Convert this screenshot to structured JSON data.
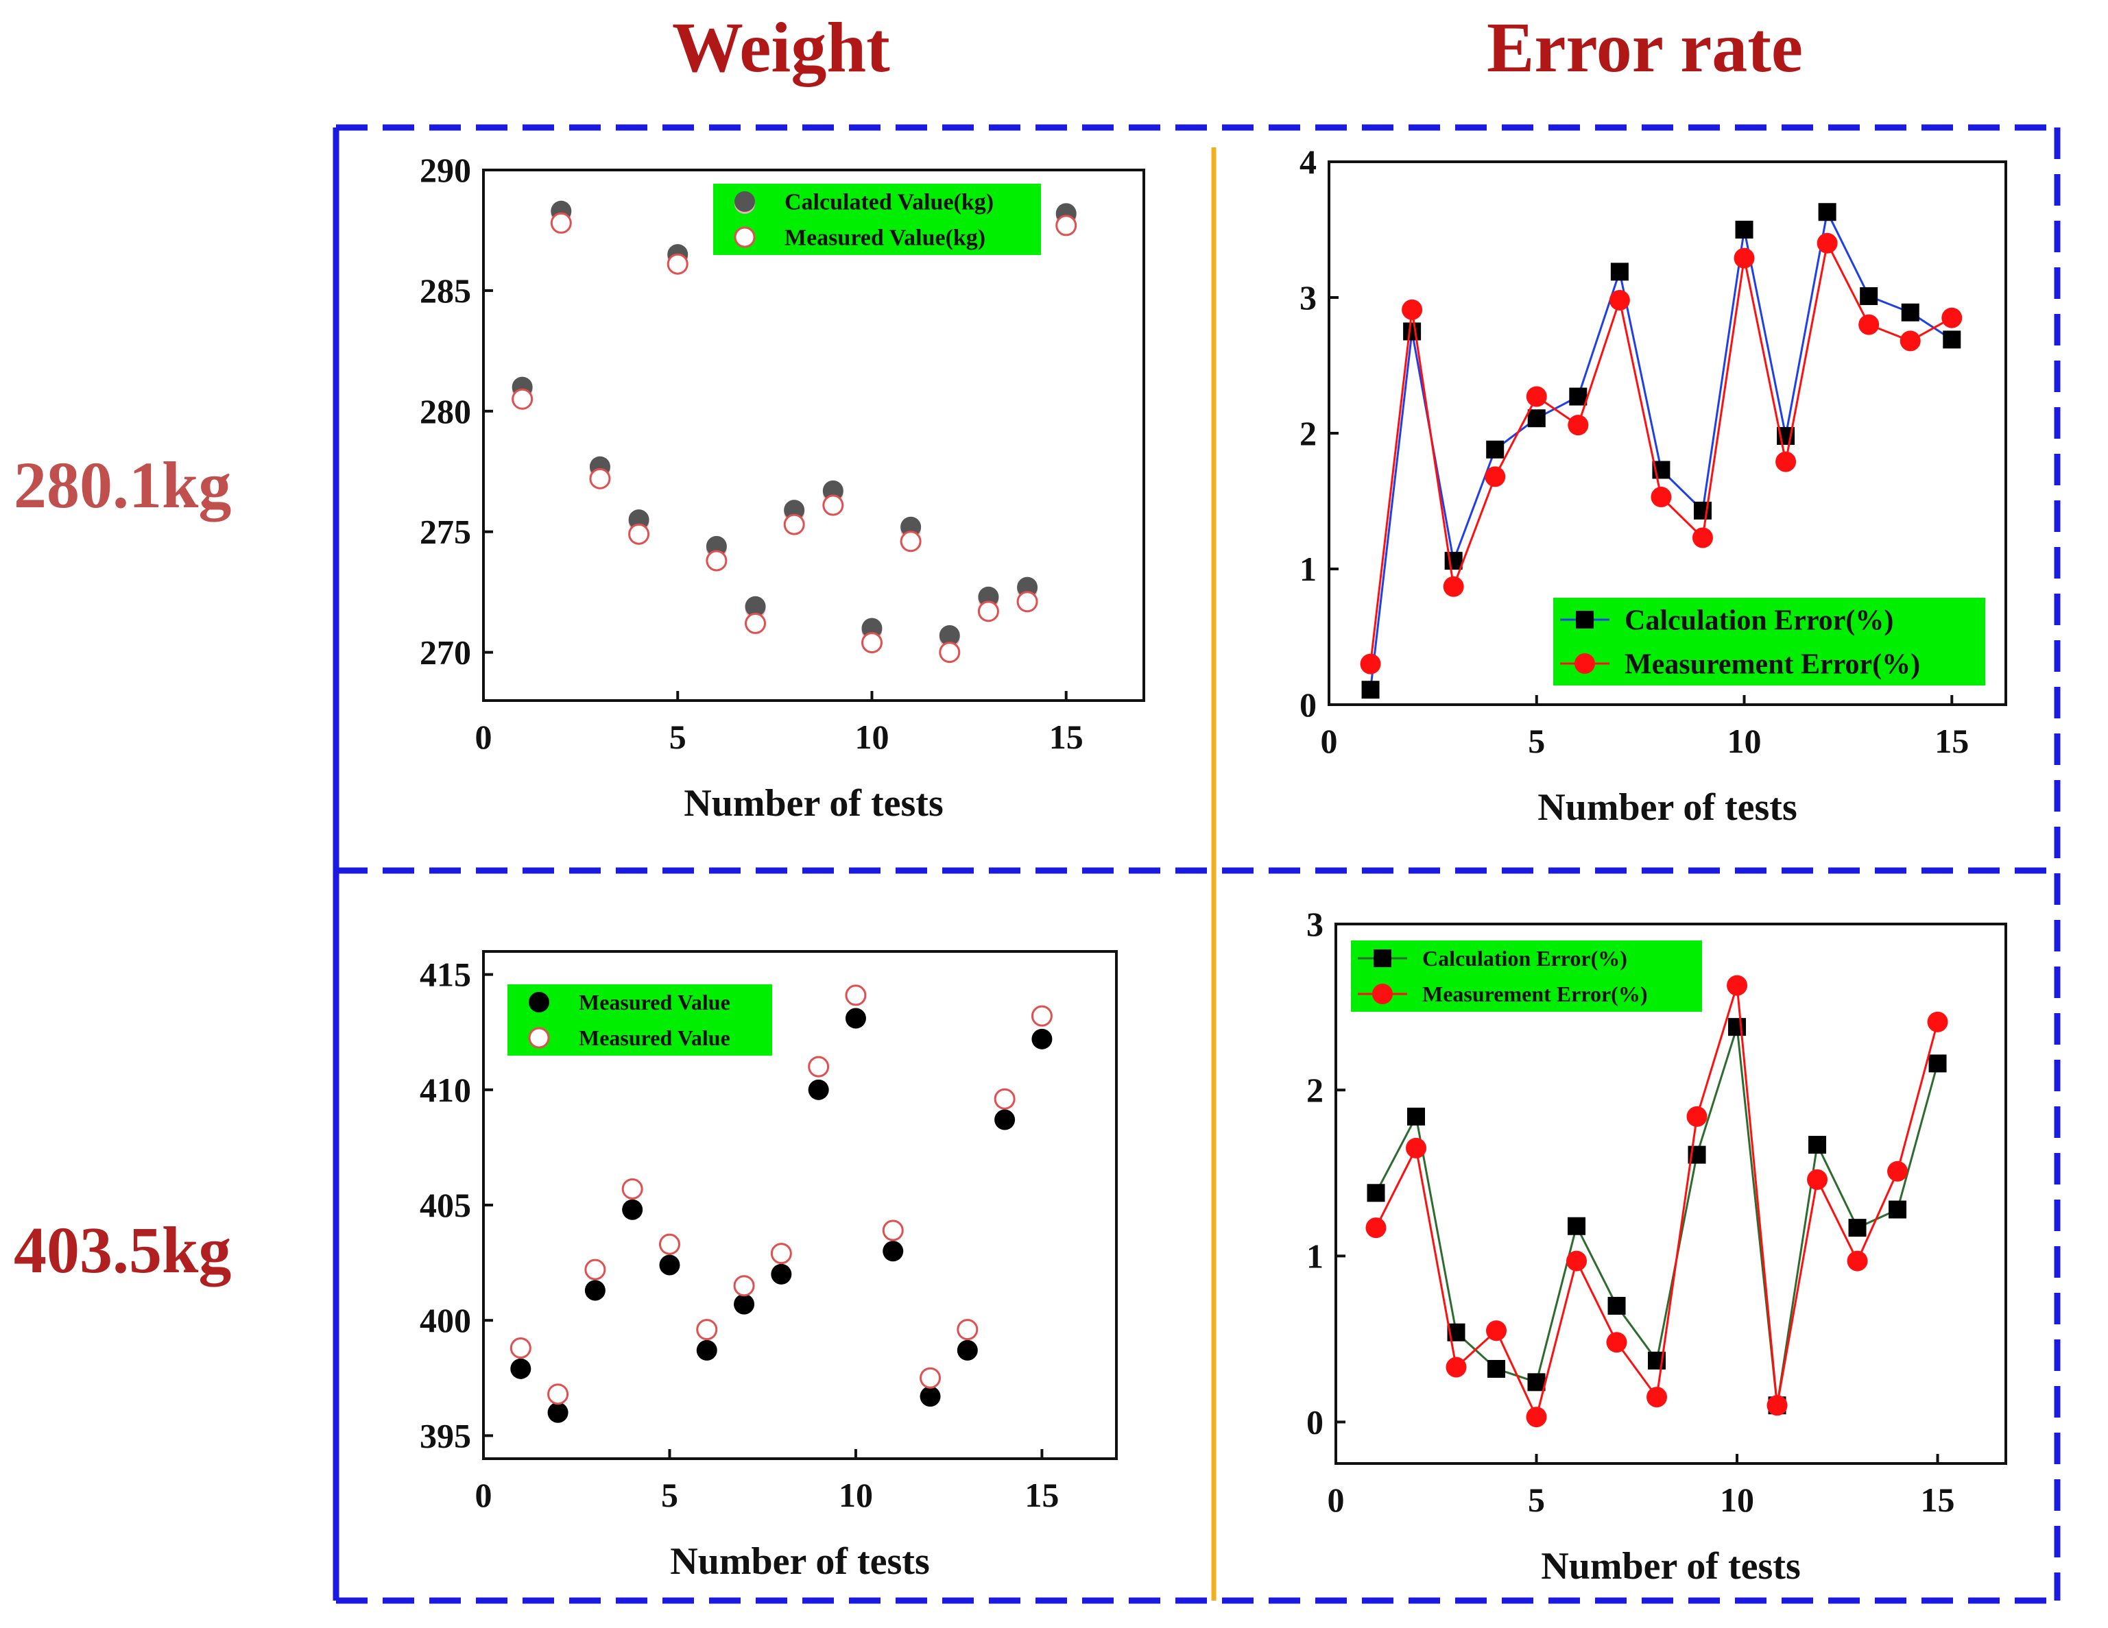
{
  "headings": {
    "columns": [
      "Weight",
      "Error rate"
    ],
    "rows": [
      "280.1kg",
      "403.5kg"
    ]
  },
  "colors": {
    "heading": "#b01818",
    "row_heading_top": "#c0504d",
    "frame": "#1a1ae0",
    "divider": "#f0b020",
    "legend_bg": "#00ee00",
    "calc_line_top": "#1f3fe8",
    "calc_line_bottom": "#2e6b2e",
    "measure": "#ff1010",
    "gray_point": "#555555",
    "black_point": "#000000"
  },
  "chart_data": [
    {
      "id": "weight-280",
      "type": "scatter",
      "title": "",
      "xlabel": "Number of tests",
      "ylabel": "",
      "xlim": [
        0,
        17
      ],
      "ylim": [
        268,
        290
      ],
      "xticks": [
        0,
        5,
        10,
        15
      ],
      "yticks": [
        270,
        275,
        280,
        285,
        290
      ],
      "legend": "top-right",
      "series": [
        {
          "name": "Calculated Value(kg)",
          "marker": "filled-gray",
          "x": [
            1,
            2,
            3,
            4,
            5,
            6,
            7,
            8,
            9,
            10,
            11,
            12,
            13,
            14,
            15
          ],
          "y": [
            281.0,
            288.3,
            277.7,
            275.5,
            286.5,
            274.4,
            271.9,
            275.9,
            276.7,
            271.0,
            275.2,
            270.7,
            272.3,
            272.7,
            288.2
          ]
        },
        {
          "name": "Measured Value(kg)",
          "marker": "open-red",
          "x": [
            1,
            2,
            3,
            4,
            5,
            6,
            7,
            8,
            9,
            10,
            11,
            12,
            13,
            14,
            15
          ],
          "y": [
            280.5,
            287.8,
            277.2,
            274.9,
            286.1,
            273.8,
            271.2,
            275.3,
            276.1,
            270.4,
            274.6,
            270.0,
            271.7,
            272.1,
            287.7
          ]
        }
      ]
    },
    {
      "id": "error-280",
      "type": "line",
      "title": "",
      "xlabel": "Number of tests",
      "ylabel": "",
      "xlim": [
        0,
        16.3
      ],
      "ylim": [
        0,
        4
      ],
      "xticks": [
        0,
        5,
        10,
        15
      ],
      "yticks": [
        0,
        1,
        2,
        3,
        4
      ],
      "legend": "bottom-right",
      "series": [
        {
          "name": "Calculation Error(%)",
          "marker": "square",
          "x": [
            1,
            2,
            3,
            4,
            5,
            6,
            7,
            8,
            9,
            10,
            11,
            12,
            13,
            14,
            15
          ],
          "y": [
            0.11,
            2.75,
            1.06,
            1.88,
            2.11,
            2.27,
            3.19,
            1.73,
            1.43,
            3.5,
            1.98,
            3.63,
            3.01,
            2.89,
            2.69
          ]
        },
        {
          "name": "Measurement Error(%)",
          "marker": "circle",
          "x": [
            1,
            2,
            3,
            4,
            5,
            6,
            7,
            8,
            9,
            10,
            11,
            12,
            13,
            14,
            15
          ],
          "y": [
            0.3,
            2.91,
            0.87,
            1.68,
            2.27,
            2.06,
            2.98,
            1.53,
            1.23,
            3.29,
            1.79,
            3.4,
            2.8,
            2.68,
            2.85
          ]
        }
      ]
    },
    {
      "id": "weight-403",
      "type": "scatter",
      "title": "",
      "xlabel": "Number of tests",
      "ylabel": "",
      "xlim": [
        0,
        17
      ],
      "ylim": [
        394,
        416
      ],
      "xticks": [
        0,
        5,
        10,
        15
      ],
      "yticks": [
        395,
        400,
        405,
        410,
        415
      ],
      "legend": "top-left",
      "series": [
        {
          "name": "Measured Value",
          "marker": "filled-black",
          "x": [
            1,
            2,
            3,
            4,
            5,
            6,
            7,
            8,
            9,
            10,
            11,
            12,
            13,
            14,
            15
          ],
          "y": [
            397.9,
            396.0,
            401.3,
            404.8,
            402.4,
            398.7,
            400.7,
            402.0,
            410.0,
            413.1,
            403.0,
            396.7,
            398.7,
            408.7,
            412.2
          ]
        },
        {
          "name": "Measured Value",
          "marker": "open-red",
          "x": [
            1,
            2,
            3,
            4,
            5,
            6,
            7,
            8,
            9,
            10,
            11,
            12,
            13,
            14,
            15
          ],
          "y": [
            398.8,
            396.8,
            402.2,
            405.7,
            403.3,
            399.6,
            401.5,
            402.9,
            411.0,
            414.1,
            403.9,
            397.5,
            399.6,
            409.6,
            413.2
          ]
        }
      ]
    },
    {
      "id": "error-403",
      "type": "line",
      "title": "",
      "xlabel": "Number of tests",
      "ylabel": "",
      "xlim": [
        0,
        16.7
      ],
      "ylim": [
        -0.25,
        3
      ],
      "xticks": [
        0,
        5,
        10,
        15
      ],
      "yticks": [
        0,
        1,
        2,
        3
      ],
      "legend": "top-left",
      "series": [
        {
          "name": "Calculation Error(%)",
          "marker": "square",
          "x": [
            1,
            2,
            3,
            4,
            5,
            6,
            7,
            8,
            9,
            10,
            11,
            12,
            13,
            14,
            15
          ],
          "y": [
            1.38,
            1.84,
            0.54,
            0.32,
            0.24,
            1.18,
            0.7,
            0.37,
            1.61,
            2.38,
            0.1,
            1.67,
            1.17,
            1.28,
            2.16
          ]
        },
        {
          "name": "Measurement Error(%)",
          "marker": "circle",
          "x": [
            1,
            2,
            3,
            4,
            5,
            6,
            7,
            8,
            9,
            10,
            11,
            12,
            13,
            14,
            15
          ],
          "y": [
            1.17,
            1.65,
            0.33,
            0.55,
            0.03,
            0.97,
            0.48,
            0.15,
            1.84,
            2.63,
            0.1,
            1.46,
            0.97,
            1.51,
            2.41
          ]
        }
      ]
    }
  ]
}
